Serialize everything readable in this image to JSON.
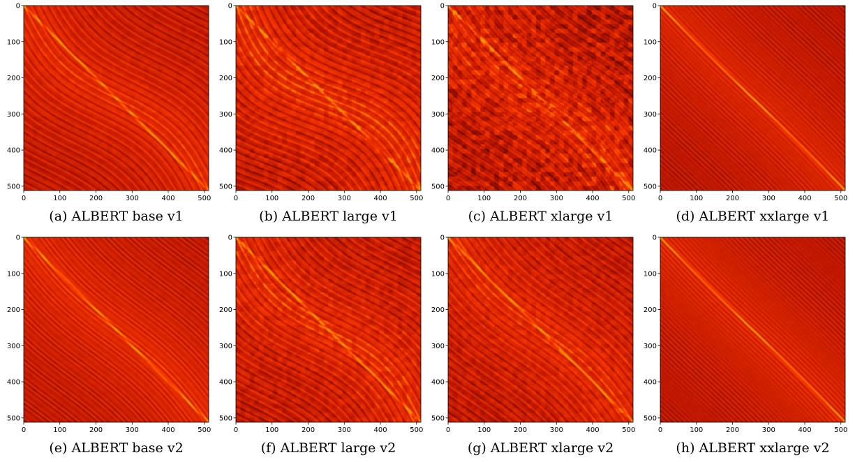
{
  "chart_data": [
    {
      "type": "heatmap",
      "caption": "(a) ALBERT base v1",
      "xticks": [
        0,
        100,
        200,
        300,
        400,
        500
      ],
      "yticks": [
        0,
        100,
        200,
        300,
        400,
        500
      ],
      "xlim": [
        0,
        512
      ],
      "ylim": [
        512,
        0
      ],
      "colormap": "hot"
    },
    {
      "type": "heatmap",
      "caption": "(b) ALBERT large v1",
      "xticks": [
        0,
        100,
        200,
        300,
        400,
        500
      ],
      "yticks": [
        0,
        100,
        200,
        300,
        400,
        500
      ],
      "xlim": [
        0,
        512
      ],
      "ylim": [
        512,
        0
      ],
      "colormap": "hot"
    },
    {
      "type": "heatmap",
      "caption": "(c) ALBERT xlarge v1",
      "xticks": [
        0,
        100,
        200,
        300,
        400,
        500
      ],
      "yticks": [
        0,
        100,
        200,
        300,
        400,
        500
      ],
      "xlim": [
        0,
        512
      ],
      "ylim": [
        512,
        0
      ],
      "colormap": "hot"
    },
    {
      "type": "heatmap",
      "caption": "(d) ALBERT xxlarge v1",
      "xticks": [
        0,
        100,
        200,
        300,
        400,
        500
      ],
      "yticks": [
        0,
        100,
        200,
        300,
        400,
        500
      ],
      "xlim": [
        0,
        512
      ],
      "ylim": [
        512,
        0
      ],
      "colormap": "hot"
    },
    {
      "type": "heatmap",
      "caption": "(e) ALBERT base v2",
      "xticks": [
        0,
        100,
        200,
        300,
        400,
        500
      ],
      "yticks": [
        0,
        100,
        200,
        300,
        400,
        500
      ],
      "xlim": [
        0,
        512
      ],
      "ylim": [
        512,
        0
      ],
      "colormap": "hot"
    },
    {
      "type": "heatmap",
      "caption": "(f) ALBERT large v2",
      "xticks": [
        0,
        100,
        200,
        300,
        400,
        500
      ],
      "yticks": [
        0,
        100,
        200,
        300,
        400,
        500
      ],
      "xlim": [
        0,
        512
      ],
      "ylim": [
        512,
        0
      ],
      "colormap": "hot"
    },
    {
      "type": "heatmap",
      "caption": "(g) ALBERT xlarge v2",
      "xticks": [
        0,
        100,
        200,
        300,
        400,
        500
      ],
      "yticks": [
        0,
        100,
        200,
        300,
        400,
        500
      ],
      "xlim": [
        0,
        512
      ],
      "ylim": [
        512,
        0
      ],
      "colormap": "hot"
    },
    {
      "type": "heatmap",
      "caption": "(h) ALBERT xxlarge v2",
      "xticks": [
        0,
        100,
        200,
        300,
        400,
        500
      ],
      "yticks": [
        0,
        100,
        200,
        300,
        400,
        500
      ],
      "xlim": [
        0,
        512
      ],
      "ylim": [
        512,
        0
      ],
      "colormap": "hot"
    }
  ],
  "colors": {
    "dark": "#1a0000",
    "mid": "#b81400",
    "bright": "#ff3a00",
    "peak": "#ff9a00"
  }
}
